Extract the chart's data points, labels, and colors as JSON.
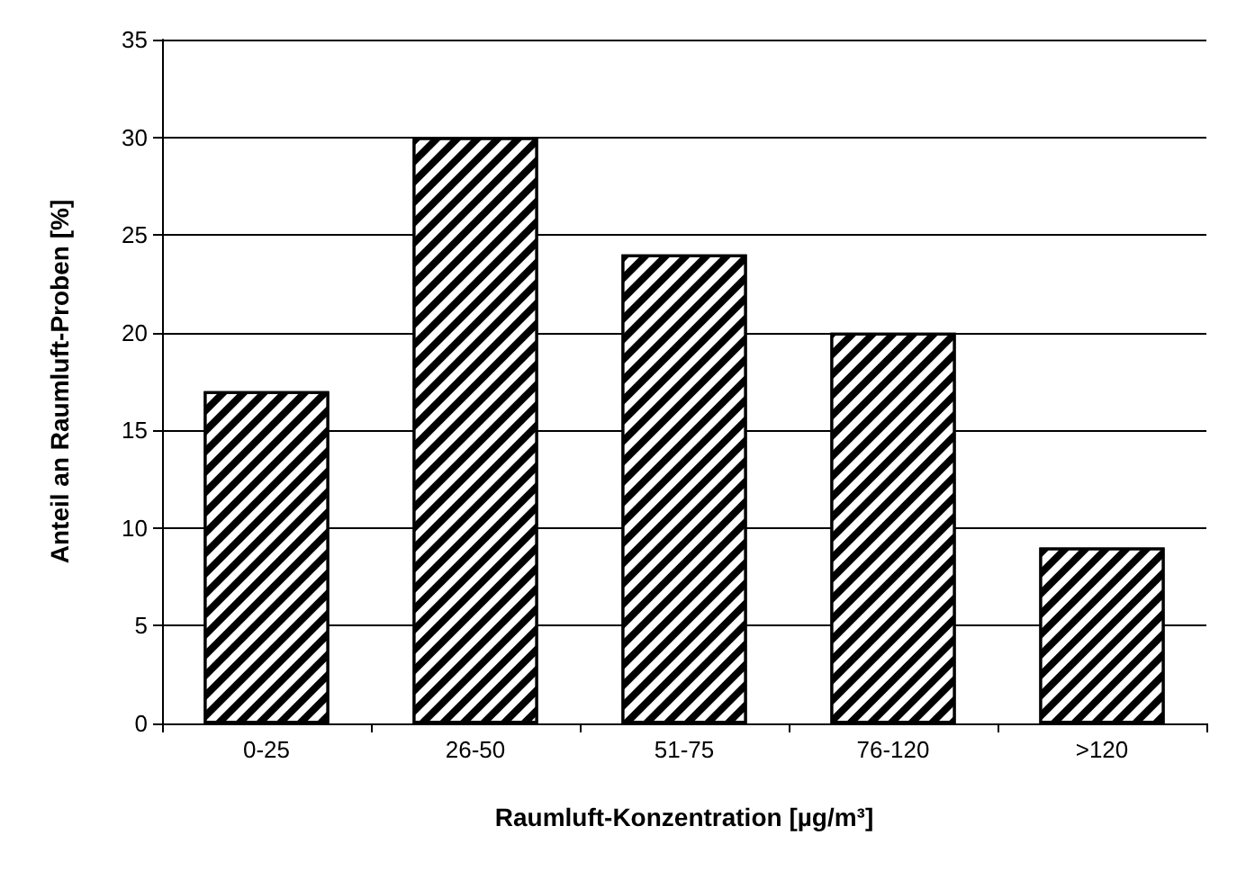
{
  "chart_data": {
    "type": "bar",
    "xlabel": "Raumluft-Konzentration [µg/m³]",
    "ylabel": "Anteil an Raumluft-Proben [%]",
    "categories": [
      "0-25",
      "26-50",
      "51-75",
      "76-120",
      ">120"
    ],
    "values": [
      17,
      30,
      24,
      20,
      9
    ],
    "color": "#000000",
    "ylim": [
      0,
      35
    ],
    "yticks": [
      0,
      5,
      10,
      15,
      20,
      25,
      30,
      35
    ],
    "grid": "y"
  }
}
